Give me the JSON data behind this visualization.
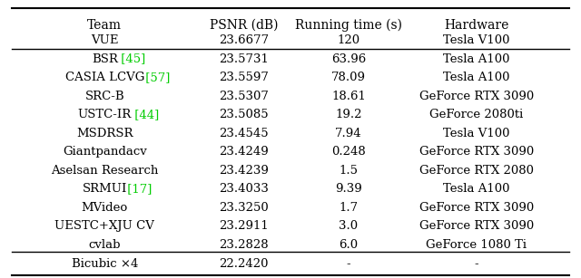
{
  "columns": [
    "Team",
    "PSNR (dB)",
    "Running time (s)",
    "Hardware"
  ],
  "rows": [
    [
      "VUE",
      "23.6677",
      "120",
      "Tesla V100"
    ],
    [
      "BSR [45]",
      "23.5731",
      "63.96",
      "Tesla A100"
    ],
    [
      "CASIA LCVG [57]",
      "23.5597",
      "78.09",
      "Tesla A100"
    ],
    [
      "SRC-B",
      "23.5307",
      "18.61",
      "GeForce RTX 3090"
    ],
    [
      "USTC-IR [44]",
      "23.5085",
      "19.2",
      "GeForce 2080ti"
    ],
    [
      "MSDRSR",
      "23.4545",
      "7.94",
      "Tesla V100"
    ],
    [
      "Giantpandacv",
      "23.4249",
      "0.248",
      "GeForce RTX 3090"
    ],
    [
      "Aselsan Research",
      "23.4239",
      "1.5",
      "GeForce RTX 2080"
    ],
    [
      "SRMUI [17]",
      "23.4033",
      "9.39",
      "Tesla A100"
    ],
    [
      "MVideo",
      "23.3250",
      "1.7",
      "GeForce RTX 3090"
    ],
    [
      "UESTC+XJU CV",
      "23.2911",
      "3.0",
      "GeForce RTX 3090"
    ],
    [
      "cvlab",
      "23.2828",
      "6.0",
      "GeForce 1080 Ti"
    ]
  ],
  "footer_row": [
    "Bicubic ×4",
    "22.2420",
    "-",
    "-"
  ],
  "citation_rows": {
    "BSR [45]": {
      "team_plain": "BSR",
      "citation": "[45]"
    },
    "CASIA LCVG [57]": {
      "team_plain": "CASIA LCVG",
      "citation": "[57]"
    },
    "USTC-IR [44]": {
      "team_plain": "USTC-IR",
      "citation": "[44]"
    },
    "SRMUI [17]": {
      "team_plain": "SRMUI",
      "citation": "[17]"
    }
  },
  "header_color": "#000000",
  "text_color": "#000000",
  "citation_color": "#00cc00",
  "bg_color": "#ffffff",
  "font_size": 9.5,
  "header_font_size": 10
}
